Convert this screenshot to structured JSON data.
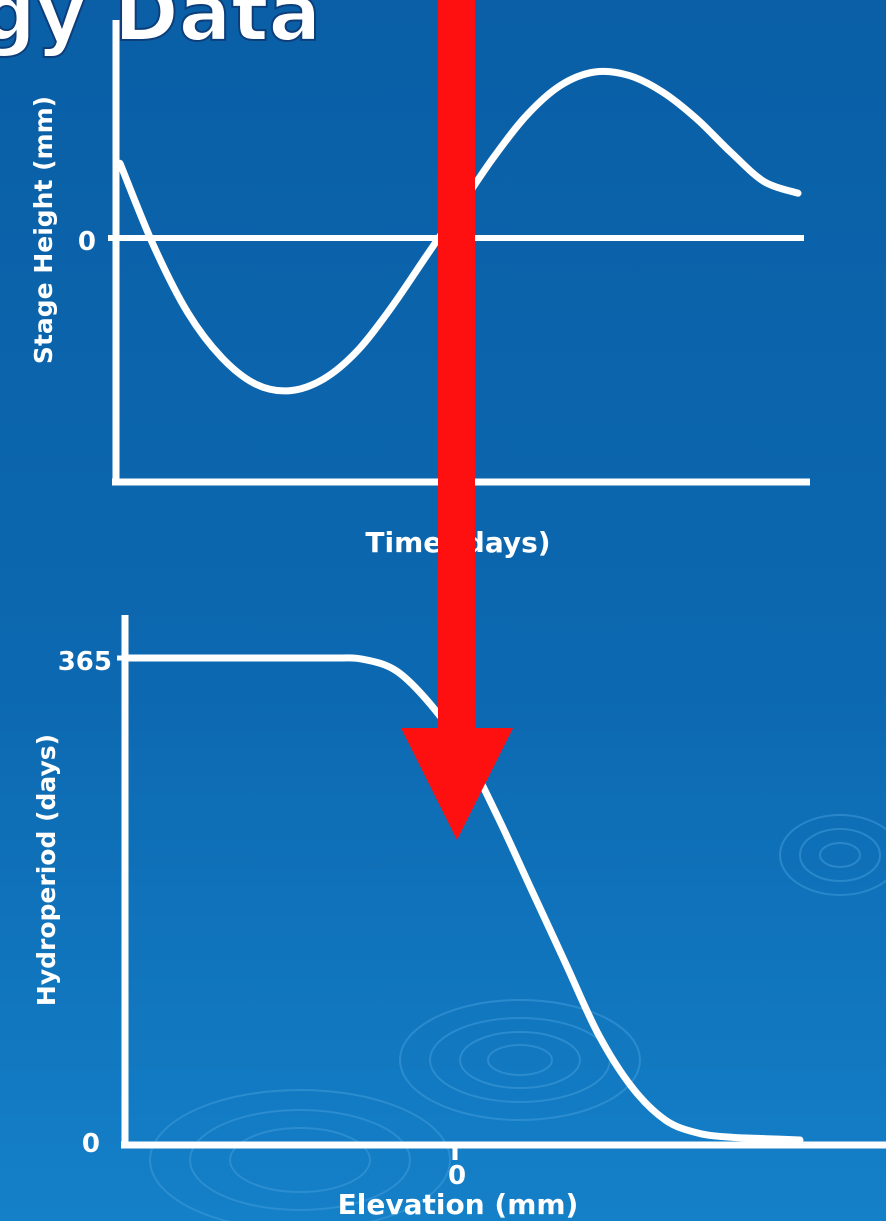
{
  "slide": {
    "title_fragment": "gy Data",
    "colors": {
      "background": "#0c68b0",
      "axis": "#ffffff",
      "curve": "#ffffff",
      "arrow": "#ff1010"
    }
  },
  "chart_data": [
    {
      "type": "line",
      "title": "",
      "xlabel": "Time (days)",
      "ylabel": "Stage Height (mm)",
      "y_tick_labels": [
        "0"
      ],
      "x_tick_labels": [],
      "ylim": [
        -1.2,
        1.2
      ],
      "xlim": [
        0,
        1
      ],
      "zero_line": true,
      "grid": false,
      "series": [
        {
          "x": [
            0,
            0.05,
            0.1,
            0.15,
            0.2,
            0.25,
            0.3,
            0.35,
            0.4,
            0.45,
            0.5,
            0.55,
            0.6,
            0.65,
            0.7,
            0.75,
            0.8,
            0.85,
            0.9,
            0.95,
            1.0
          ],
          "values": [
            0.45,
            -0.05,
            -0.45,
            -0.72,
            -0.88,
            -0.92,
            -0.85,
            -0.68,
            -0.42,
            -0.12,
            0.18,
            0.48,
            0.74,
            0.92,
            1.0,
            0.98,
            0.88,
            0.72,
            0.52,
            0.34,
            0.27
          ]
        }
      ]
    },
    {
      "type": "line",
      "title": "",
      "xlabel": "Elevation (mm)",
      "ylabel": "Hydroperiod (days)",
      "y_tick_labels": [
        "365",
        "0"
      ],
      "x_tick_labels": [
        "0"
      ],
      "ylim": [
        0,
        365
      ],
      "grid": false,
      "series": [
        {
          "x": [
            0,
            0.1,
            0.2,
            0.3,
            0.35,
            0.4,
            0.45,
            0.5,
            0.55,
            0.6,
            0.65,
            0.7,
            0.75,
            0.8,
            0.85,
            0.9,
            0.95,
            1.0
          ],
          "values": [
            365,
            365,
            365,
            365,
            364,
            355,
            330,
            295,
            245,
            190,
            135,
            80,
            40,
            15,
            5,
            2,
            1,
            0
          ]
        }
      ]
    }
  ]
}
